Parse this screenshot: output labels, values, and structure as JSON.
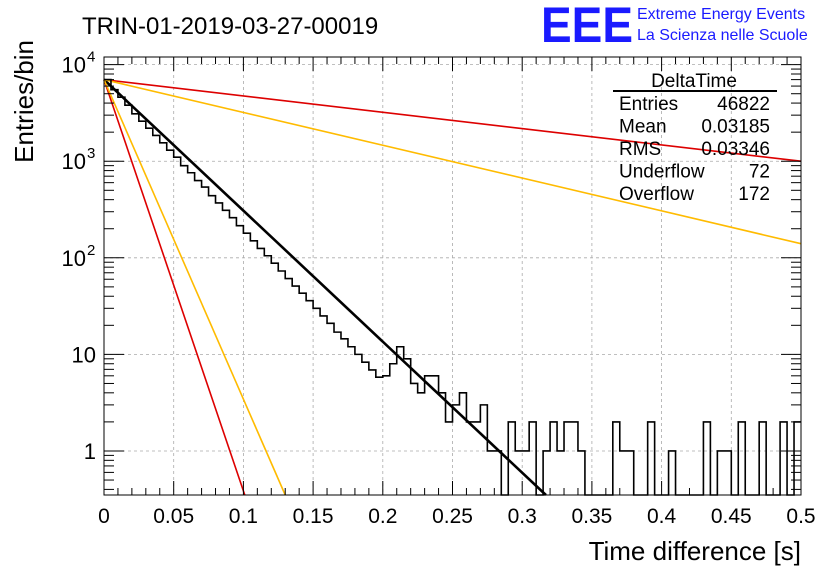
{
  "chart_data": {
    "type": "line",
    "title": "TRIN-01-2019-03-27-00019",
    "xlabel": "Time difference [s]",
    "ylabel": "Entries/bin",
    "x_range": [
      0,
      0.5
    ],
    "y_range": [
      0.35,
      12000
    ],
    "y_scale": "log",
    "grid": true,
    "x_ticks": [
      {
        "value": 0,
        "label": "0"
      },
      {
        "value": 0.05,
        "label": "0.05"
      },
      {
        "value": 0.1,
        "label": "0.1"
      },
      {
        "value": 0.15,
        "label": "0.15"
      },
      {
        "value": 0.2,
        "label": "0.2"
      },
      {
        "value": 0.25,
        "label": "0.25"
      },
      {
        "value": 0.3,
        "label": "0.3"
      },
      {
        "value": 0.35,
        "label": "0.35"
      },
      {
        "value": 0.4,
        "label": "0.4"
      },
      {
        "value": 0.45,
        "label": "0.45"
      },
      {
        "value": 0.5,
        "label": "0.5"
      }
    ],
    "y_ticks": [
      {
        "value": 1,
        "label": "1",
        "exp": ""
      },
      {
        "value": 10,
        "label": "10",
        "exp": ""
      },
      {
        "value": 100,
        "label": "10",
        "exp": "2"
      },
      {
        "value": 1000,
        "label": "10",
        "exp": "3"
      },
      {
        "value": 10000,
        "label": "10",
        "exp": "4"
      }
    ],
    "histogram": {
      "bin_width": 0.005,
      "color": "#000000",
      "values": [
        7000,
        5500,
        4600,
        3800,
        3100,
        2600,
        2200,
        1850,
        1550,
        1300,
        1100,
        900,
        760,
        630,
        540,
        440,
        370,
        310,
        260,
        215,
        180,
        150,
        125,
        105,
        88,
        73,
        61,
        51,
        43,
        36,
        30,
        25,
        21,
        17,
        14.5,
        12,
        10,
        8.3,
        6.9,
        5.8,
        6,
        8,
        12,
        9,
        5,
        4,
        6,
        6,
        4,
        2,
        3,
        4,
        2,
        2,
        3,
        1,
        1,
        0,
        2,
        1,
        1,
        2,
        0,
        1,
        2,
        1,
        2,
        2,
        1,
        0,
        0,
        0,
        0,
        2,
        1,
        1,
        0,
        0,
        2,
        0,
        0,
        1,
        0,
        0,
        0,
        0,
        2,
        0,
        1,
        1,
        0,
        2,
        0,
        0,
        2,
        0,
        0,
        2,
        0,
        2
      ]
    },
    "fit_lines": [
      {
        "color": "#000000",
        "x_start": 0,
        "y_start": 7000,
        "x_end": 0.317,
        "y_end": 0.35,
        "width": 2.6
      },
      {
        "color": "#dd0000",
        "x_start": 0,
        "y_start": 7000,
        "x_end": 0.5,
        "y_end": 1000,
        "width": 1.6
      },
      {
        "color": "#ffbb00",
        "x_start": 0,
        "y_start": 7000,
        "x_end": 0.5,
        "y_end": 140,
        "width": 1.6
      },
      {
        "color": "#dd0000",
        "x_start": 0,
        "y_start": 7000,
        "x_end": 0.101,
        "y_end": 0.35,
        "width": 1.6
      },
      {
        "color": "#ffbb00",
        "x_start": 0,
        "y_start": 7000,
        "x_end": 0.13,
        "y_end": 0.35,
        "width": 1.6
      }
    ],
    "stats_box": {
      "title": "DeltaTime",
      "rows": [
        {
          "label": "Entries",
          "value": "46822"
        },
        {
          "label": "Mean",
          "value": "0.03185"
        },
        {
          "label": "RMS",
          "value": "0.03346"
        },
        {
          "label": "Underflow",
          "value": "72"
        },
        {
          "label": "Overflow",
          "value": "172"
        }
      ]
    }
  },
  "logo": {
    "letters": "EEE",
    "line1": "Extreme Energy Events",
    "line2": "La Scienza nelle Scuole",
    "color": "#1a1aff"
  }
}
